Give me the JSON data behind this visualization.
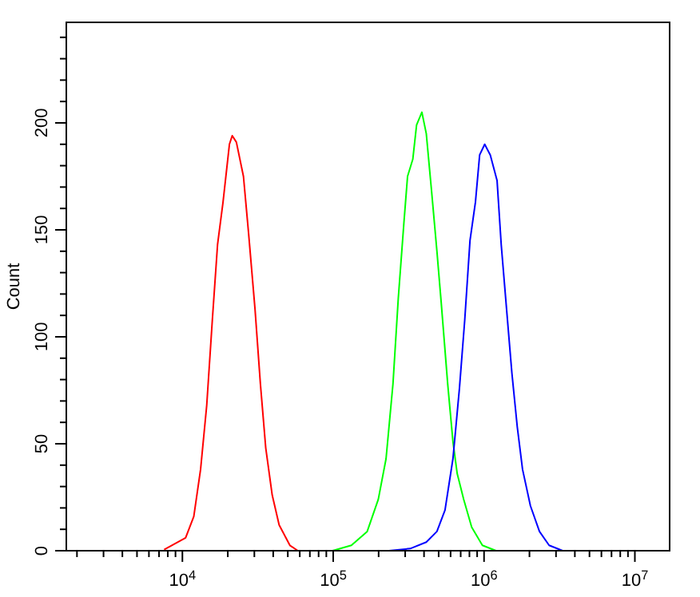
{
  "chart_data": {
    "type": "line",
    "ylabel": "Count",
    "log": "x",
    "xlim": [
      1700,
      17000000
    ],
    "ylim": [
      0,
      247
    ],
    "xticks": [
      {
        "value": 2000,
        "label": null
      },
      {
        "value": 3000,
        "label": null
      },
      {
        "value": 4000,
        "label": null
      },
      {
        "value": 5000,
        "label": null
      },
      {
        "value": 6000,
        "label": null
      },
      {
        "value": 7000,
        "label": null
      },
      {
        "value": 8000,
        "label": null
      },
      {
        "value": 9000,
        "label": null
      },
      {
        "value": 10000,
        "label": "10$^{4}$"
      },
      {
        "value": 20000,
        "label": null
      },
      {
        "value": 30000,
        "label": null
      },
      {
        "value": 40000,
        "label": null
      },
      {
        "value": 50000,
        "label": null
      },
      {
        "value": 60000,
        "label": null
      },
      {
        "value": 70000,
        "label": null
      },
      {
        "value": 80000,
        "label": null
      },
      {
        "value": 90000,
        "label": null
      },
      {
        "value": 100000,
        "label": "10$^{5}$"
      },
      {
        "value": 200000,
        "label": null
      },
      {
        "value": 300000,
        "label": null
      },
      {
        "value": 400000,
        "label": null
      },
      {
        "value": 500000,
        "label": null
      },
      {
        "value": 600000,
        "label": null
      },
      {
        "value": 700000,
        "label": null
      },
      {
        "value": 800000,
        "label": null
      },
      {
        "value": 900000,
        "label": null
      },
      {
        "value": 1000000,
        "label": "10$^{6}$"
      },
      {
        "value": 2000000,
        "label": null
      },
      {
        "value": 3000000,
        "label": null
      },
      {
        "value": 4000000,
        "label": null
      },
      {
        "value": 5000000,
        "label": null
      },
      {
        "value": 6000000,
        "label": null
      },
      {
        "value": 7000000,
        "label": null
      },
      {
        "value": 8000000,
        "label": null
      },
      {
        "value": 9000000,
        "label": null
      },
      {
        "value": 10000000,
        "label": "10$^{7}$"
      }
    ],
    "yticks": [
      0,
      {
        "value": 10,
        "label": null
      },
      {
        "value": 20,
        "label": null
      },
      {
        "value": 30,
        "label": null
      },
      {
        "value": 40,
        "label": null
      },
      50,
      {
        "value": 60,
        "label": null
      },
      {
        "value": 70,
        "label": null
      },
      {
        "value": 80,
        "label": null
      },
      {
        "value": 90,
        "label": null
      },
      100,
      {
        "value": 110,
        "label": null
      },
      {
        "value": 120,
        "label": null
      },
      {
        "value": 130,
        "label": null
      },
      {
        "value": 140,
        "label": null
      },
      150,
      {
        "value": 160,
        "label": null
      },
      {
        "value": 170,
        "label": null
      },
      {
        "value": 180,
        "label": null
      },
      {
        "value": 190,
        "label": null
      },
      200,
      {
        "value": 210,
        "label": null
      },
      {
        "value": 220,
        "label": null
      },
      {
        "value": 230,
        "label": null
      },
      {
        "value": 240,
        "label": null
      }
    ],
    "series": [
      {
        "color": "#ff0000",
        "x": [
          7570,
          10500,
          11900,
          13200,
          14500,
          15800,
          17100,
          18600,
          20500,
          21400,
          22800,
          25400,
          27500,
          30300,
          32900,
          35700,
          39400,
          43800,
          51600,
          58300
        ],
        "values": [
          0.5,
          6,
          16,
          38,
          68,
          108,
          143,
          163,
          190,
          194,
          191,
          175,
          148,
          113,
          78,
          48,
          26,
          12,
          2.5,
          0
        ]
      },
      {
        "color": "#00ff00",
        "x": [
          99100,
          132000,
          168000,
          199000,
          224000,
          249000,
          270000,
          294000,
          311000,
          337000,
          357000,
          387000,
          414000,
          449000,
          487000,
          520000,
          574000,
          622000,
          664000,
          733000,
          828000,
          975000,
          1200000
        ],
        "values": [
          0,
          2.5,
          9,
          24,
          43,
          78,
          118,
          153,
          175,
          183,
          199,
          205,
          195,
          168,
          140,
          116,
          78,
          51,
          36,
          24,
          11,
          2.5,
          0
        ]
      },
      {
        "color": "#0000ff",
        "x": [
          234000,
          324000,
          414000,
          487000,
          551000,
          622000,
          687000,
          745000,
          807000,
          877000,
          935000,
          1010000,
          1100000,
          1220000,
          1300000,
          1410000,
          1530000,
          1660000,
          1800000,
          2030000,
          2330000,
          2700000,
          3320000
        ],
        "values": [
          0,
          1,
          4,
          9,
          19,
          43,
          76,
          108,
          145,
          163,
          185,
          190,
          185,
          173,
          143,
          113,
          83,
          58,
          38,
          21,
          9,
          2.5,
          0
        ]
      }
    ]
  }
}
